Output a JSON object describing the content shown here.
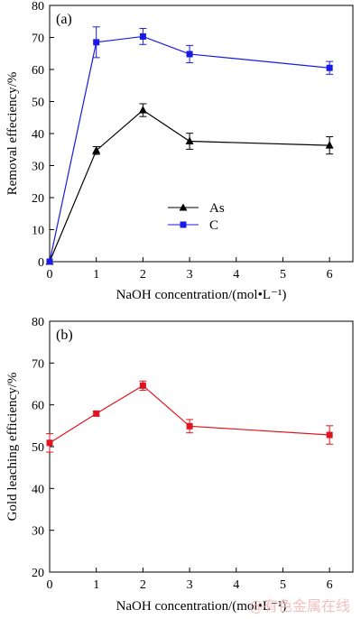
{
  "watermark": "@有色金属在线",
  "chart_data": [
    {
      "type": "line",
      "panel_label": "(a)",
      "xlabel": "NaOH concentration/(mol•L⁻¹)",
      "ylabel": "Removal effeciency/%",
      "xlim": [
        0,
        6.5
      ],
      "ylim": [
        0,
        80
      ],
      "x_ticks": [
        0,
        1,
        2,
        3,
        4,
        5,
        6
      ],
      "y_ticks": [
        0,
        10,
        20,
        30,
        40,
        50,
        60,
        70,
        80
      ],
      "grid": false,
      "legend_position": "center-left",
      "series": [
        {
          "name": "As",
          "color": "#000000",
          "marker": "triangle",
          "x": [
            0,
            1,
            2,
            3,
            6
          ],
          "y": [
            0,
            34.7,
            47.3,
            37.6,
            36.3
          ],
          "err": [
            0,
            1.2,
            2.0,
            2.5,
            2.7
          ]
        },
        {
          "name": "C",
          "color": "#1a1ae6",
          "marker": "square",
          "x": [
            0,
            1,
            2,
            3,
            6
          ],
          "y": [
            0,
            68.5,
            70.3,
            64.8,
            60.5
          ],
          "err": [
            0,
            4.8,
            2.5,
            2.7,
            2.0
          ]
        }
      ]
    },
    {
      "type": "line",
      "panel_label": "(b)",
      "xlabel": "NaOH concentration/(mol•L⁻¹)",
      "ylabel": "Gold leaching efficiency/%",
      "xlim": [
        0,
        6.5
      ],
      "ylim": [
        20,
        80
      ],
      "x_ticks": [
        0,
        1,
        2,
        3,
        4,
        5,
        6
      ],
      "y_ticks": [
        20,
        30,
        40,
        50,
        60,
        70,
        80
      ],
      "grid": false,
      "series": [
        {
          "color": "#e0141e",
          "marker": "square",
          "x": [
            0,
            1,
            2,
            3,
            6
          ],
          "y": [
            50.9,
            57.9,
            64.6,
            54.9,
            52.8
          ],
          "err": [
            2.2,
            0.5,
            1.1,
            1.6,
            2.2
          ]
        }
      ]
    }
  ]
}
